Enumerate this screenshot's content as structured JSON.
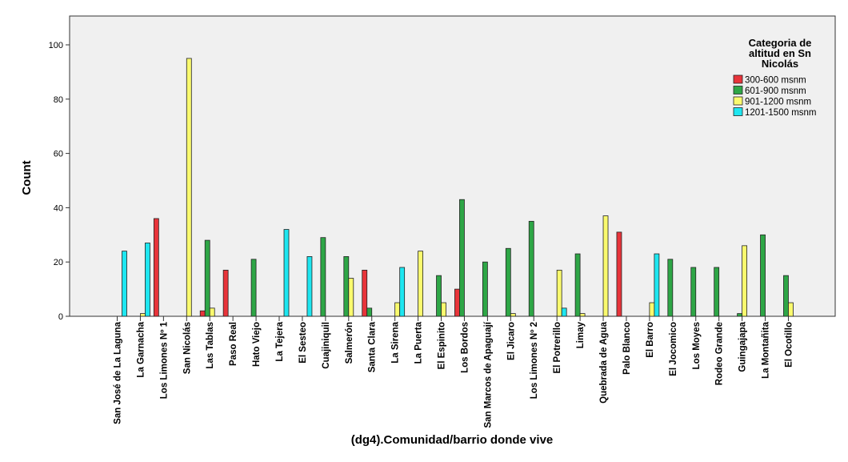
{
  "chart_data": {
    "type": "bar",
    "xlabel": "(dg4).Comunidad/barrio donde vive",
    "ylabel": "Count",
    "ylim": [
      0,
      110
    ],
    "yticks": [
      0,
      20,
      40,
      60,
      80,
      100
    ],
    "grid": false,
    "legend": {
      "title": "Categoria de altitud en Sn Nicolás",
      "title_lines": [
        "Categoria de",
        "altitud en Sn",
        "Nicolás"
      ],
      "placement": "top-right"
    },
    "categories": [
      "San José de La Laguna",
      "La Garnacha",
      "Los Limones Nº 1",
      "San Nicolás",
      "Las Tablas",
      "Paso Real",
      "Hato Viejo",
      "La Tejera",
      "El Sesteo",
      "Cuajiniquil",
      "Salmerón",
      "Santa Clara",
      "La Sirena",
      "La Puerta",
      "El Espinito",
      "Los Bordos",
      "San Marcos de Apaguají",
      "El Jicaro",
      "Los Limones Nº 2",
      "El Potrerillo",
      "Limay",
      "Quebrada de Agua",
      "Palo Blanco",
      "El Barro",
      "El Jocomico",
      "Los Moyes",
      "Rodeo Grande",
      "Guingajapa",
      "La Montañita",
      "El Ocotillo"
    ],
    "series": [
      {
        "name": "300-600 msnm",
        "color": "#e8343a",
        "values": [
          0,
          0,
          36,
          0,
          2,
          17,
          0,
          0,
          0,
          0,
          0,
          17,
          0,
          0,
          0,
          10,
          0,
          0,
          0,
          0,
          0,
          0,
          31,
          0,
          0,
          0,
          0,
          0,
          0,
          0
        ]
      },
      {
        "name": "601-900 msnm",
        "color": "#2ea646",
        "values": [
          0,
          0,
          0,
          0,
          28,
          0,
          21,
          0,
          0,
          29,
          22,
          3,
          0,
          0,
          15,
          43,
          20,
          25,
          35,
          0,
          23,
          0,
          0,
          0,
          21,
          18,
          18,
          1,
          30,
          15
        ]
      },
      {
        "name": "901-1200 msnm",
        "color": "#fafa6e",
        "values": [
          0,
          1,
          0,
          95,
          3,
          0,
          0,
          0,
          0,
          0,
          14,
          0,
          5,
          24,
          5,
          0,
          0,
          1,
          0,
          17,
          1,
          37,
          0,
          5,
          0,
          0,
          0,
          26,
          0,
          5
        ]
      },
      {
        "name": "1201-1500 msnm",
        "color": "#1ee6f0",
        "values": [
          24,
          27,
          0,
          0,
          0,
          0,
          0,
          32,
          22,
          0,
          0,
          0,
          18,
          0,
          0,
          0,
          0,
          0,
          0,
          3,
          0,
          0,
          0,
          23,
          0,
          0,
          0,
          0,
          0,
          0
        ]
      }
    ]
  }
}
